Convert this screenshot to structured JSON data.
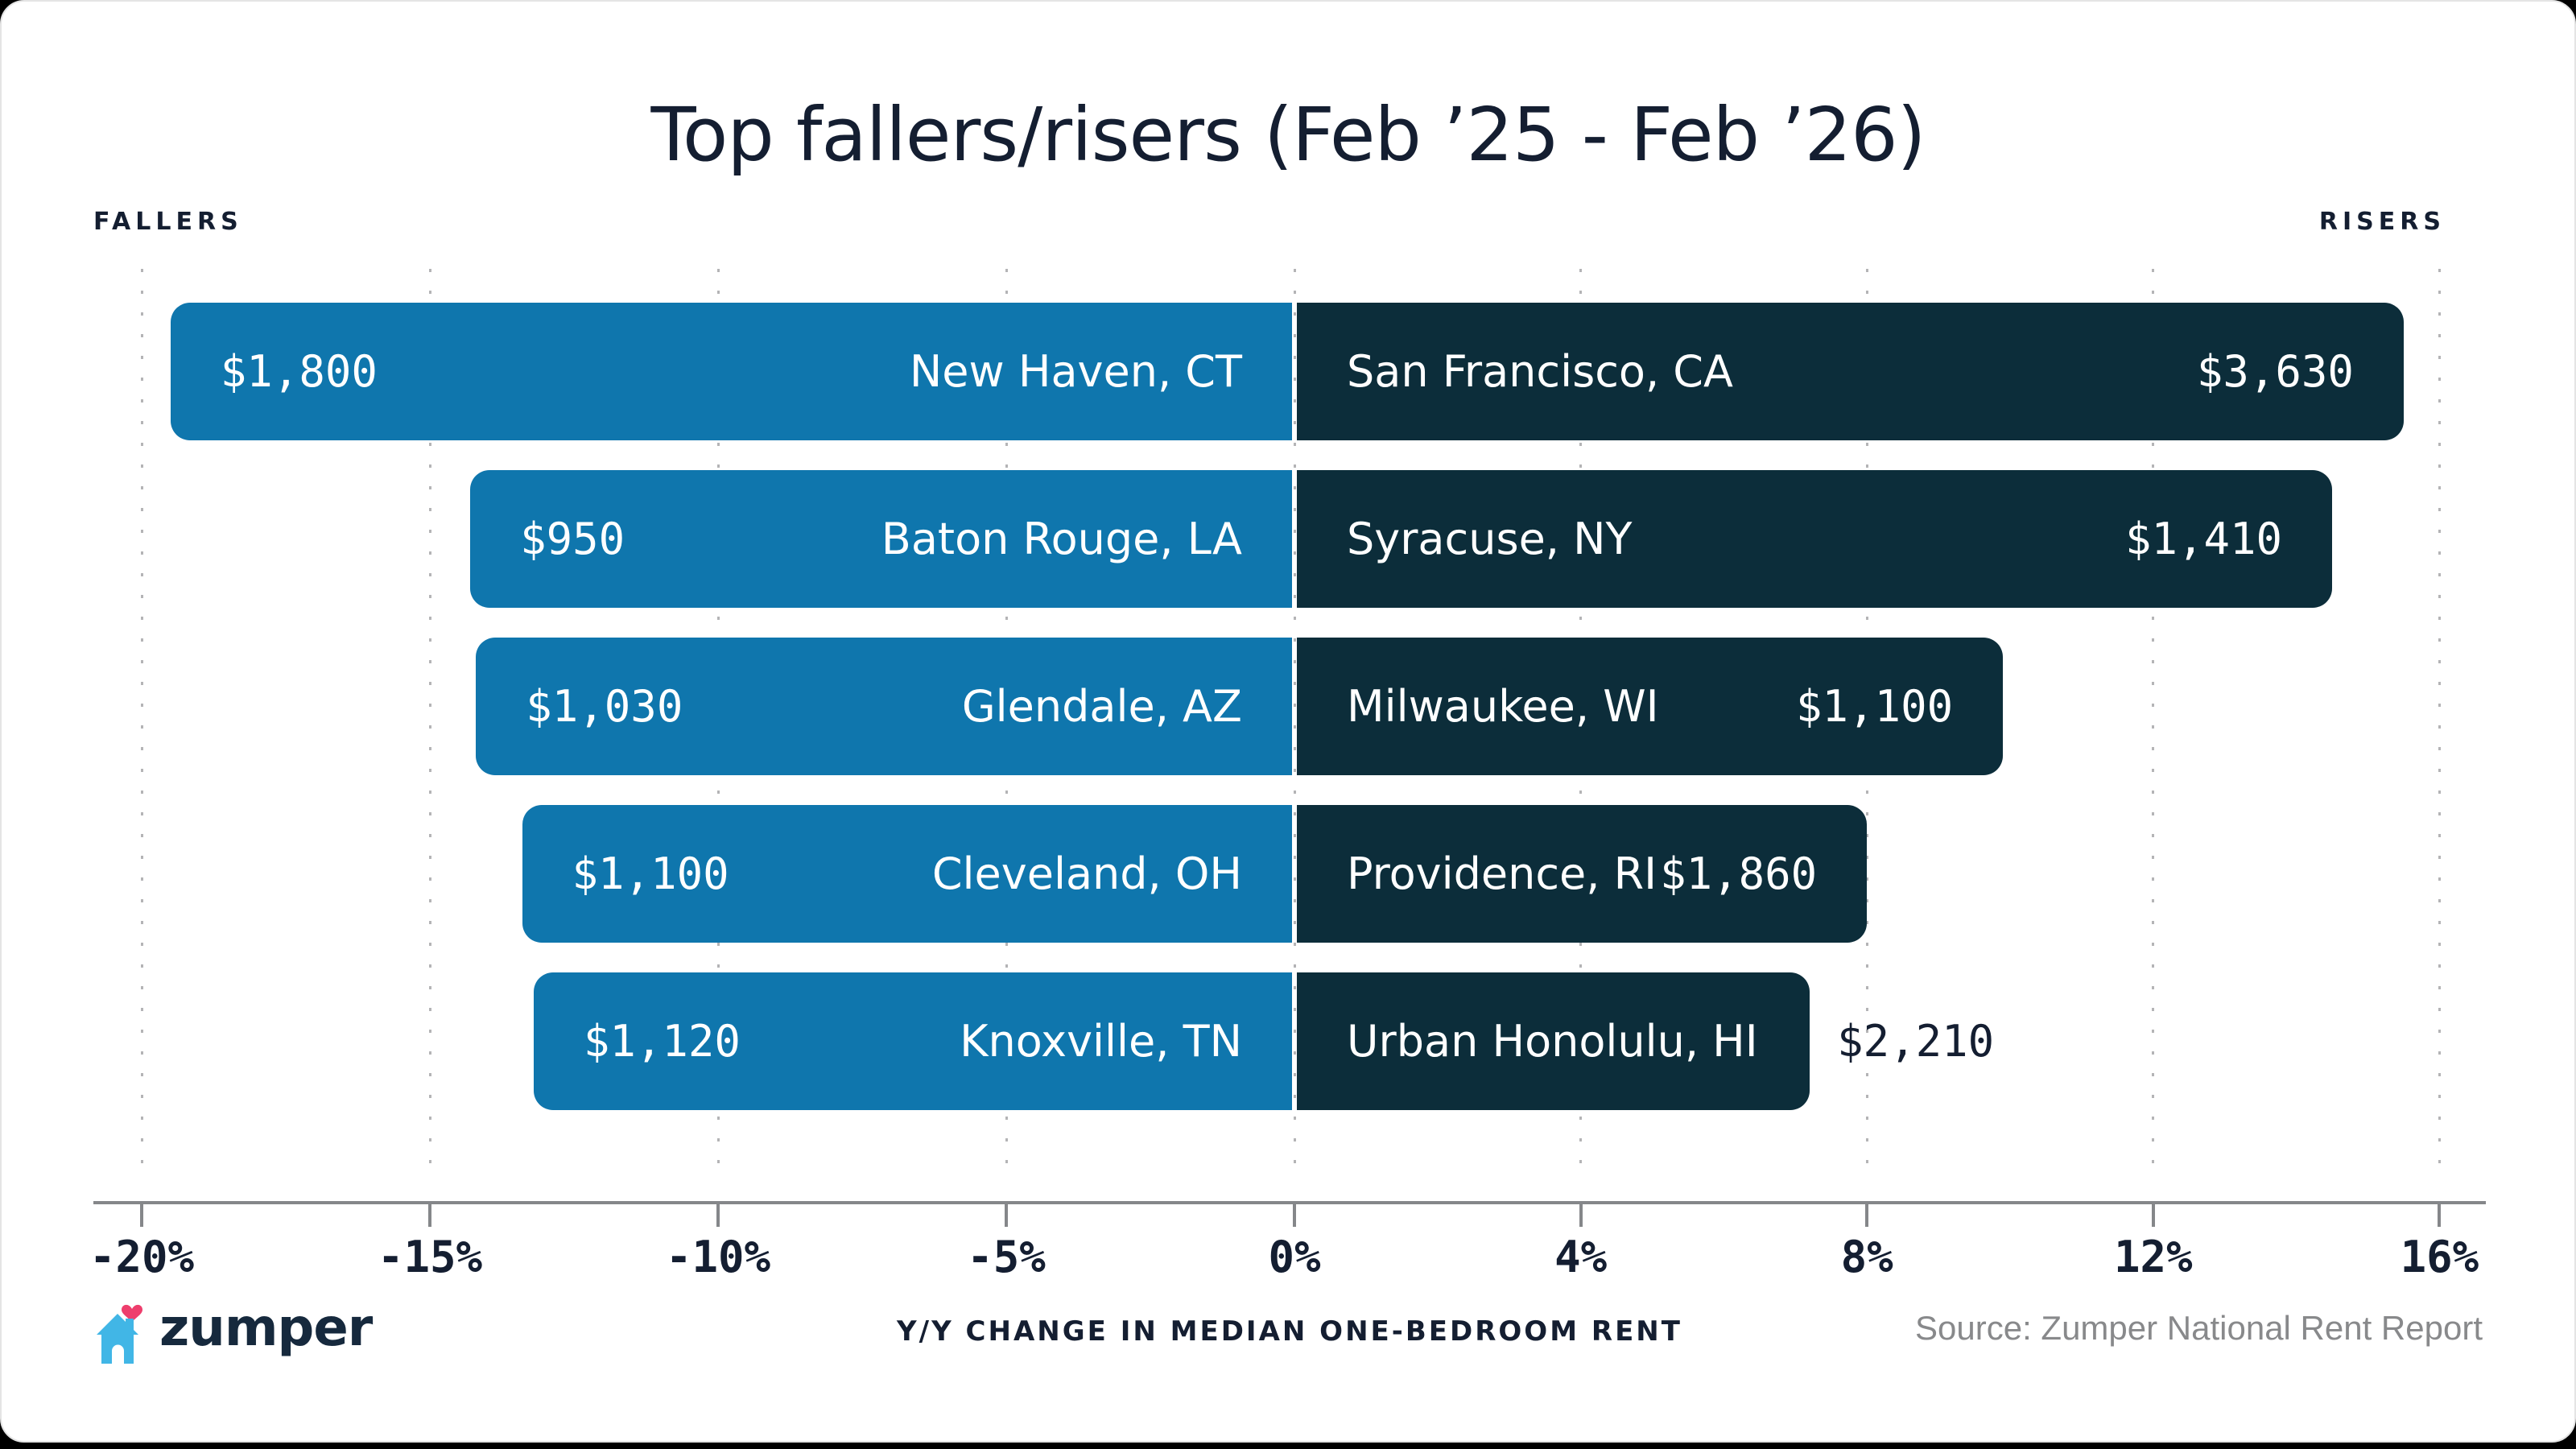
{
  "title": "Top fallers/risers (Feb ’25 - Feb ’26)",
  "labels": {
    "fallers": "FALLERS",
    "risers": "RISERS"
  },
  "chart_data": {
    "type": "diverging_bar",
    "title": "Top fallers/risers (Feb '25 - Feb '26)",
    "xlabel": "Y/Y CHANGE IN MEDIAN ONE-BEDROOM RENT",
    "axis": {
      "left_range_pct": [
        -20,
        0
      ],
      "right_range_pct": [
        0,
        16
      ],
      "grid": "dotted-vertical",
      "ticks": [
        {
          "v": -20,
          "label": "-20%"
        },
        {
          "v": -15,
          "label": "-15%"
        },
        {
          "v": -10,
          "label": "-10%"
        },
        {
          "v": -5,
          "label": "-5%"
        },
        {
          "v": 0,
          "label": "0%"
        },
        {
          "v": 4,
          "label": "4%"
        },
        {
          "v": 8,
          "label": "8%"
        },
        {
          "v": 12,
          "label": "12%"
        },
        {
          "v": 16,
          "label": "16%"
        }
      ]
    },
    "rows": [
      {
        "faller": {
          "city": "New Haven, CT",
          "rent": "$1,800",
          "pct_change": -19.5
        },
        "riser": {
          "city": "San Francisco, CA",
          "rent": "$3,630",
          "pct_change": 15.5,
          "value_outside": false
        }
      },
      {
        "faller": {
          "city": "Baton Rouge, LA",
          "rent": "$950",
          "pct_change": -14.3
        },
        "riser": {
          "city": "Syracuse, NY",
          "rent": "$1,410",
          "pct_change": 14.5,
          "value_outside": false
        }
      },
      {
        "faller": {
          "city": "Glendale, AZ",
          "rent": "$1,030",
          "pct_change": -14.2
        },
        "riser": {
          "city": "Milwaukee, WI",
          "rent": "$1,100",
          "pct_change": 9.9,
          "value_outside": false
        }
      },
      {
        "faller": {
          "city": "Cleveland, OH",
          "rent": "$1,100",
          "pct_change": -13.4
        },
        "riser": {
          "city": "Providence, RI",
          "rent": "$1,860",
          "pct_change": 8.0,
          "value_outside": false
        }
      },
      {
        "faller": {
          "city": "Knoxville, TN",
          "rent": "$1,120",
          "pct_change": -13.2
        },
        "riser": {
          "city": "Urban Honolulu, HI",
          "rent": "$2,210",
          "pct_change": 7.2,
          "value_outside": true
        }
      }
    ]
  },
  "footer": {
    "brand": "zumper",
    "source": "Source: Zumper National Rent Report"
  },
  "colors": {
    "faller_bar": "#0f76ad",
    "riser_bar": "#0c2d3a",
    "text_dark": "#141e31",
    "bar_text": "#ffffff",
    "axis_gray": "#85878a",
    "grid_dot": "#b4b4b6",
    "source_gray": "#88898b",
    "logo_house_blue": "#41b6e6",
    "logo_heart_pink": "#ee3e6d",
    "logo_word_navy": "#16293d",
    "card_bg": "#ffffff",
    "page_bg": "#000000"
  }
}
